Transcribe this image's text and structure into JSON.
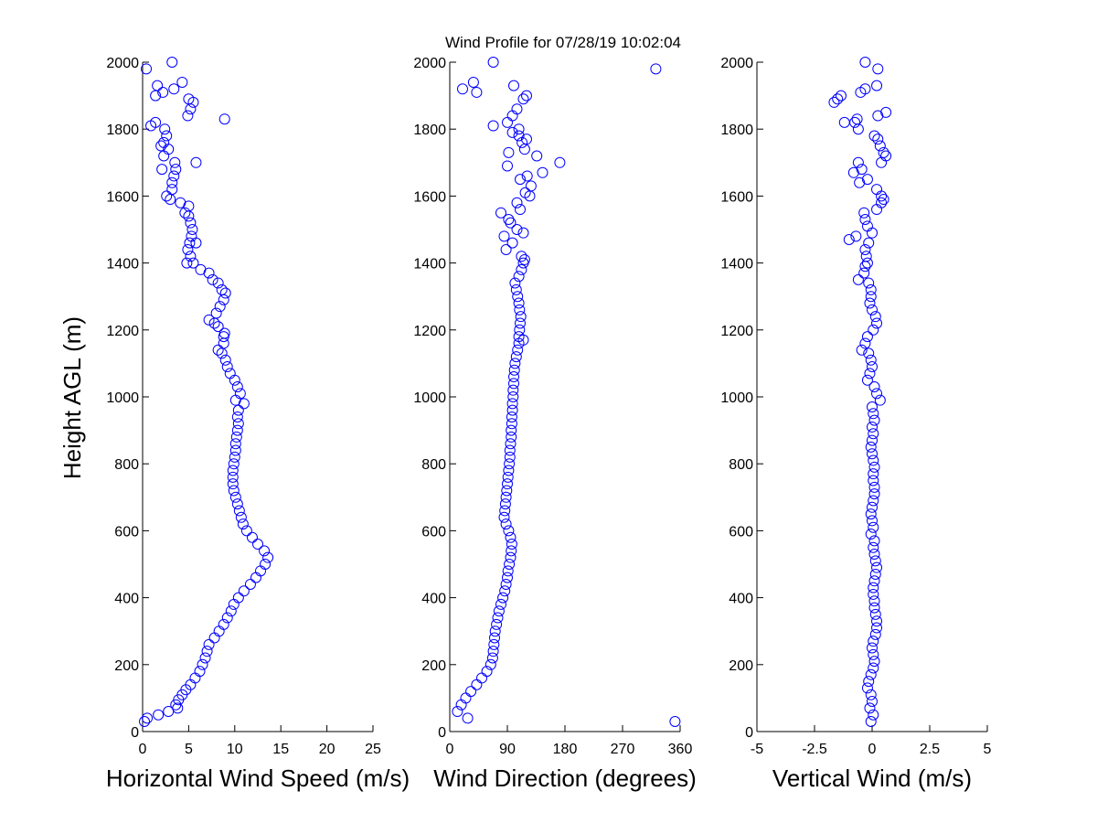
{
  "title": "Wind Profile for  07/28/19 10:02:04",
  "ylabel": "Height AGL (m)",
  "yticks": [
    "0",
    "200",
    "400",
    "600",
    "800",
    "1000",
    "1200",
    "1400",
    "1600",
    "1800",
    "2000"
  ],
  "marker_color": "#0000ff",
  "chart_data": [
    {
      "type": "scatter",
      "xlabel": "Horizontal Wind Speed (m/s)",
      "ylabel": "Height AGL (m)",
      "xlim": [
        0,
        25
      ],
      "ylim": [
        0,
        2000
      ],
      "xticks": [
        0,
        5,
        10,
        15,
        20,
        25
      ],
      "xtick_labels": [
        "0",
        "5",
        "10",
        "15",
        "20",
        "25"
      ],
      "points": [
        [
          0.2,
          30
        ],
        [
          0.5,
          40
        ],
        [
          1.7,
          50
        ],
        [
          2.8,
          60
        ],
        [
          3.8,
          70
        ],
        [
          3.6,
          80
        ],
        [
          3.9,
          95
        ],
        [
          4.3,
          110
        ],
        [
          4.7,
          125
        ],
        [
          5.2,
          140
        ],
        [
          5.7,
          160
        ],
        [
          6.2,
          180
        ],
        [
          6.5,
          200
        ],
        [
          6.8,
          220
        ],
        [
          7.0,
          240
        ],
        [
          7.2,
          260
        ],
        [
          7.8,
          280
        ],
        [
          8.3,
          300
        ],
        [
          8.8,
          320
        ],
        [
          9.2,
          340
        ],
        [
          9.6,
          360
        ],
        [
          9.9,
          380
        ],
        [
          10.4,
          400
        ],
        [
          11.0,
          420
        ],
        [
          11.7,
          440
        ],
        [
          12.3,
          460
        ],
        [
          12.8,
          480
        ],
        [
          13.3,
          500
        ],
        [
          13.6,
          520
        ],
        [
          13.2,
          540
        ],
        [
          12.5,
          560
        ],
        [
          11.9,
          580
        ],
        [
          11.3,
          600
        ],
        [
          10.9,
          620
        ],
        [
          10.7,
          640
        ],
        [
          10.5,
          660
        ],
        [
          10.3,
          680
        ],
        [
          10.1,
          700
        ],
        [
          9.9,
          720
        ],
        [
          9.8,
          740
        ],
        [
          9.8,
          760
        ],
        [
          9.8,
          780
        ],
        [
          9.9,
          800
        ],
        [
          10.0,
          820
        ],
        [
          10.1,
          840
        ],
        [
          10.1,
          860
        ],
        [
          10.2,
          880
        ],
        [
          10.3,
          900
        ],
        [
          10.4,
          920
        ],
        [
          10.3,
          940
        ],
        [
          10.4,
          960
        ],
        [
          11.0,
          980
        ],
        [
          10.1,
          990
        ],
        [
          10.6,
          1010
        ],
        [
          10.3,
          1030
        ],
        [
          10.0,
          1050
        ],
        [
          9.5,
          1070
        ],
        [
          9.2,
          1090
        ],
        [
          9.0,
          1110
        ],
        [
          8.6,
          1130
        ],
        [
          8.2,
          1140
        ],
        [
          8.8,
          1160
        ],
        [
          8.8,
          1180
        ],
        [
          8.9,
          1190
        ],
        [
          8.2,
          1210
        ],
        [
          7.8,
          1220
        ],
        [
          7.2,
          1230
        ],
        [
          8.0,
          1250
        ],
        [
          8.4,
          1270
        ],
        [
          8.8,
          1290
        ],
        [
          9.0,
          1310
        ],
        [
          8.6,
          1320
        ],
        [
          8.2,
          1340
        ],
        [
          7.6,
          1350
        ],
        [
          7.2,
          1370
        ],
        [
          6.3,
          1380
        ],
        [
          5.5,
          1400
        ],
        [
          4.8,
          1400
        ],
        [
          5.2,
          1420
        ],
        [
          4.9,
          1440
        ],
        [
          5.1,
          1460
        ],
        [
          5.8,
          1460
        ],
        [
          5.3,
          1480
        ],
        [
          5.4,
          1500
        ],
        [
          5.2,
          1520
        ],
        [
          5.0,
          1540
        ],
        [
          4.6,
          1550
        ],
        [
          5.0,
          1570
        ],
        [
          4.1,
          1580
        ],
        [
          3.0,
          1590
        ],
        [
          2.6,
          1600
        ],
        [
          3.2,
          1620
        ],
        [
          3.2,
          1640
        ],
        [
          3.4,
          1660
        ],
        [
          3.6,
          1680
        ],
        [
          2.1,
          1680
        ],
        [
          5.8,
          1700
        ],
        [
          3.5,
          1700
        ],
        [
          2.3,
          1720
        ],
        [
          2.8,
          1740
        ],
        [
          2.0,
          1750
        ],
        [
          2.3,
          1760
        ],
        [
          2.6,
          1780
        ],
        [
          2.4,
          1800
        ],
        [
          1.4,
          1820
        ],
        [
          0.9,
          1810
        ],
        [
          8.9,
          1830
        ],
        [
          4.9,
          1840
        ],
        [
          5.2,
          1860
        ],
        [
          5.5,
          1880
        ],
        [
          5.0,
          1890
        ],
        [
          1.4,
          1900
        ],
        [
          2.2,
          1910
        ],
        [
          3.4,
          1920
        ],
        [
          1.6,
          1930
        ],
        [
          4.3,
          1940
        ],
        [
          0.4,
          1980
        ],
        [
          3.2,
          2000
        ]
      ]
    },
    {
      "type": "scatter",
      "xlabel": "Wind Direction (degrees)",
      "xlim": [
        0,
        360
      ],
      "ylim": [
        0,
        2000
      ],
      "xticks": [
        0,
        90,
        180,
        270,
        360
      ],
      "xtick_labels": [
        "0",
        "90",
        "180",
        "270",
        "360"
      ],
      "points": [
        [
          352,
          30
        ],
        [
          28,
          40
        ],
        [
          12,
          60
        ],
        [
          18,
          80
        ],
        [
          25,
          100
        ],
        [
          33,
          120
        ],
        [
          42,
          140
        ],
        [
          50,
          160
        ],
        [
          58,
          180
        ],
        [
          64,
          200
        ],
        [
          67,
          220
        ],
        [
          68,
          240
        ],
        [
          69,
          260
        ],
        [
          70,
          280
        ],
        [
          71,
          300
        ],
        [
          73,
          320
        ],
        [
          75,
          340
        ],
        [
          77,
          360
        ],
        [
          80,
          380
        ],
        [
          83,
          400
        ],
        [
          86,
          420
        ],
        [
          88,
          440
        ],
        [
          90,
          460
        ],
        [
          91,
          480
        ],
        [
          93,
          500
        ],
        [
          95,
          520
        ],
        [
          96,
          540
        ],
        [
          97,
          560
        ],
        [
          95,
          580
        ],
        [
          92,
          600
        ],
        [
          88,
          620
        ],
        [
          85,
          640
        ],
        [
          86,
          660
        ],
        [
          87,
          680
        ],
        [
          88,
          700
        ],
        [
          89,
          720
        ],
        [
          90,
          740
        ],
        [
          91,
          760
        ],
        [
          92,
          780
        ],
        [
          93,
          800
        ],
        [
          94,
          820
        ],
        [
          94,
          840
        ],
        [
          95,
          860
        ],
        [
          96,
          880
        ],
        [
          96,
          900
        ],
        [
          97,
          920
        ],
        [
          97,
          940
        ],
        [
          98,
          960
        ],
        [
          98,
          980
        ],
        [
          99,
          1000
        ],
        [
          99,
          1020
        ],
        [
          100,
          1040
        ],
        [
          100,
          1060
        ],
        [
          101,
          1080
        ],
        [
          102,
          1100
        ],
        [
          104,
          1120
        ],
        [
          106,
          1140
        ],
        [
          108,
          1160
        ],
        [
          115,
          1170
        ],
        [
          108,
          1180
        ],
        [
          109,
          1200
        ],
        [
          110,
          1220
        ],
        [
          111,
          1240
        ],
        [
          109,
          1260
        ],
        [
          108,
          1280
        ],
        [
          106,
          1300
        ],
        [
          104,
          1320
        ],
        [
          102,
          1340
        ],
        [
          108,
          1360
        ],
        [
          112,
          1380
        ],
        [
          115,
          1400
        ],
        [
          117,
          1410
        ],
        [
          112,
          1420
        ],
        [
          88,
          1440
        ],
        [
          98,
          1460
        ],
        [
          85,
          1480
        ],
        [
          115,
          1490
        ],
        [
          105,
          1500
        ],
        [
          95,
          1520
        ],
        [
          92,
          1530
        ],
        [
          80,
          1550
        ],
        [
          110,
          1560
        ],
        [
          105,
          1580
        ],
        [
          125,
          1600
        ],
        [
          118,
          1610
        ],
        [
          127,
          1630
        ],
        [
          110,
          1650
        ],
        [
          121,
          1660
        ],
        [
          145,
          1670
        ],
        [
          172,
          1700
        ],
        [
          136,
          1720
        ],
        [
          90,
          1690
        ],
        [
          92,
          1730
        ],
        [
          117,
          1740
        ],
        [
          113,
          1760
        ],
        [
          120,
          1770
        ],
        [
          108,
          1780
        ],
        [
          98,
          1790
        ],
        [
          108,
          1800
        ],
        [
          90,
          1820
        ],
        [
          68,
          1810
        ],
        [
          98,
          1840
        ],
        [
          105,
          1860
        ],
        [
          115,
          1890
        ],
        [
          120,
          1900
        ],
        [
          100,
          1930
        ],
        [
          20,
          1920
        ],
        [
          37,
          1940
        ],
        [
          42,
          1910
        ],
        [
          322,
          1980
        ],
        [
          68,
          2000
        ]
      ]
    },
    {
      "type": "scatter",
      "xlabel": "Vertical Wind (m/s)",
      "xlim": [
        -5,
        5
      ],
      "ylim": [
        0,
        2000
      ],
      "xticks": [
        -5,
        -2.5,
        0,
        2.5,
        5
      ],
      "xtick_labels": [
        "-5",
        "-2.5",
        "0",
        "2.5",
        "5"
      ],
      "points": [
        [
          -0.05,
          30
        ],
        [
          0.05,
          50
        ],
        [
          -0.1,
          70
        ],
        [
          0.0,
          90
        ],
        [
          -0.05,
          110
        ],
        [
          -0.2,
          130
        ],
        [
          -0.15,
          150
        ],
        [
          -0.05,
          170
        ],
        [
          0.05,
          190
        ],
        [
          0.1,
          210
        ],
        [
          0.05,
          230
        ],
        [
          0.0,
          250
        ],
        [
          0.05,
          270
        ],
        [
          0.15,
          290
        ],
        [
          0.2,
          310
        ],
        [
          0.2,
          330
        ],
        [
          0.15,
          350
        ],
        [
          0.1,
          370
        ],
        [
          0.1,
          390
        ],
        [
          0.05,
          410
        ],
        [
          0.05,
          430
        ],
        [
          0.1,
          450
        ],
        [
          0.15,
          470
        ],
        [
          0.2,
          490
        ],
        [
          0.15,
          510
        ],
        [
          0.1,
          530
        ],
        [
          0.05,
          550
        ],
        [
          0.1,
          570
        ],
        [
          -0.05,
          590
        ],
        [
          0.05,
          610
        ],
        [
          0.0,
          630
        ],
        [
          -0.05,
          650
        ],
        [
          0.0,
          670
        ],
        [
          0.05,
          690
        ],
        [
          0.1,
          710
        ],
        [
          0.1,
          730
        ],
        [
          0.05,
          750
        ],
        [
          0.05,
          770
        ],
        [
          0.1,
          790
        ],
        [
          0.05,
          810
        ],
        [
          0.0,
          830
        ],
        [
          -0.05,
          850
        ],
        [
          0.0,
          870
        ],
        [
          0.05,
          890
        ],
        [
          0.0,
          910
        ],
        [
          0.1,
          930
        ],
        [
          0.05,
          950
        ],
        [
          0.0,
          970
        ],
        [
          0.35,
          990
        ],
        [
          0.2,
          1010
        ],
        [
          0.1,
          1030
        ],
        [
          -0.2,
          1050
        ],
        [
          -0.1,
          1070
        ],
        [
          0.0,
          1090
        ],
        [
          -0.05,
          1110
        ],
        [
          -0.15,
          1130
        ],
        [
          -0.45,
          1140
        ],
        [
          -0.3,
          1160
        ],
        [
          -0.2,
          1180
        ],
        [
          0.05,
          1200
        ],
        [
          0.2,
          1220
        ],
        [
          0.15,
          1240
        ],
        [
          0.0,
          1260
        ],
        [
          -0.1,
          1280
        ],
        [
          -0.05,
          1300
        ],
        [
          -0.05,
          1320
        ],
        [
          -0.15,
          1340
        ],
        [
          -0.6,
          1350
        ],
        [
          -0.35,
          1370
        ],
        [
          -0.3,
          1390
        ],
        [
          -0.2,
          1400
        ],
        [
          -0.25,
          1420
        ],
        [
          -0.3,
          1440
        ],
        [
          -0.15,
          1460
        ],
        [
          -1.0,
          1470
        ],
        [
          -0.7,
          1480
        ],
        [
          0.0,
          1490
        ],
        [
          -0.2,
          1510
        ],
        [
          -0.3,
          1530
        ],
        [
          -0.35,
          1550
        ],
        [
          0.2,
          1560
        ],
        [
          0.4,
          1580
        ],
        [
          0.5,
          1590
        ],
        [
          0.4,
          1600
        ],
        [
          0.2,
          1620
        ],
        [
          -0.55,
          1640
        ],
        [
          -0.2,
          1650
        ],
        [
          -0.8,
          1670
        ],
        [
          -0.45,
          1680
        ],
        [
          -0.6,
          1700
        ],
        [
          0.4,
          1700
        ],
        [
          0.6,
          1720
        ],
        [
          0.5,
          1730
        ],
        [
          0.35,
          1750
        ],
        [
          0.25,
          1770
        ],
        [
          0.1,
          1780
        ],
        [
          -0.6,
          1800
        ],
        [
          -0.75,
          1820
        ],
        [
          -1.2,
          1820
        ],
        [
          -0.65,
          1830
        ],
        [
          0.25,
          1840
        ],
        [
          0.6,
          1850
        ],
        [
          -1.65,
          1880
        ],
        [
          -1.5,
          1890
        ],
        [
          -1.35,
          1900
        ],
        [
          -0.5,
          1910
        ],
        [
          -0.3,
          1920
        ],
        [
          0.2,
          1930
        ],
        [
          0.25,
          1980
        ],
        [
          -0.3,
          2000
        ]
      ]
    }
  ]
}
